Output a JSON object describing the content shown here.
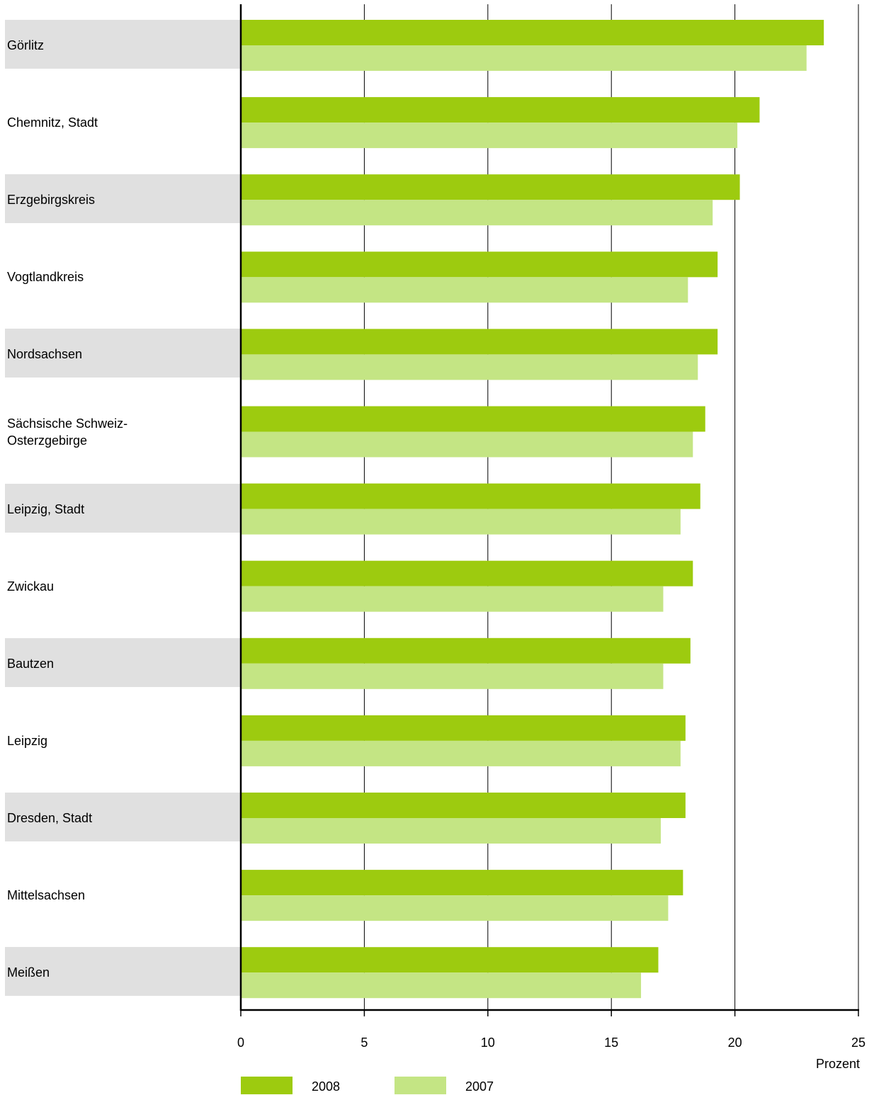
{
  "chart_data": {
    "type": "bar",
    "orientation": "horizontal",
    "categories": [
      "Görlitz",
      "Chemnitz, Stadt",
      "Erzgebirgskreis",
      "Vogtlandkreis",
      "Nordsachsen",
      "Sächsische Schweiz-\nOsterzgebirge",
      "Leipzig, Stadt",
      "Zwickau",
      "Bautzen",
      "Leipzig",
      "Dresden, Stadt",
      "Mittelsachsen",
      "Meißen"
    ],
    "series": [
      {
        "name": "2008",
        "color": "#9dcb0f",
        "values": [
          23.6,
          21.0,
          20.2,
          19.3,
          19.3,
          18.8,
          18.6,
          18.3,
          18.2,
          18.0,
          18.0,
          17.9,
          16.9
        ]
      },
      {
        "name": "2007",
        "color": "#c4e584",
        "values": [
          22.9,
          20.1,
          19.1,
          18.1,
          18.5,
          18.3,
          17.8,
          17.1,
          17.1,
          17.8,
          17.0,
          17.3,
          16.2
        ]
      }
    ],
    "xlim": [
      0,
      25
    ],
    "xticks": [
      "0",
      "5",
      "10",
      "15",
      "20",
      "25"
    ],
    "xlabel": "Prozent",
    "grid": "vertical",
    "legend": "bottom"
  }
}
